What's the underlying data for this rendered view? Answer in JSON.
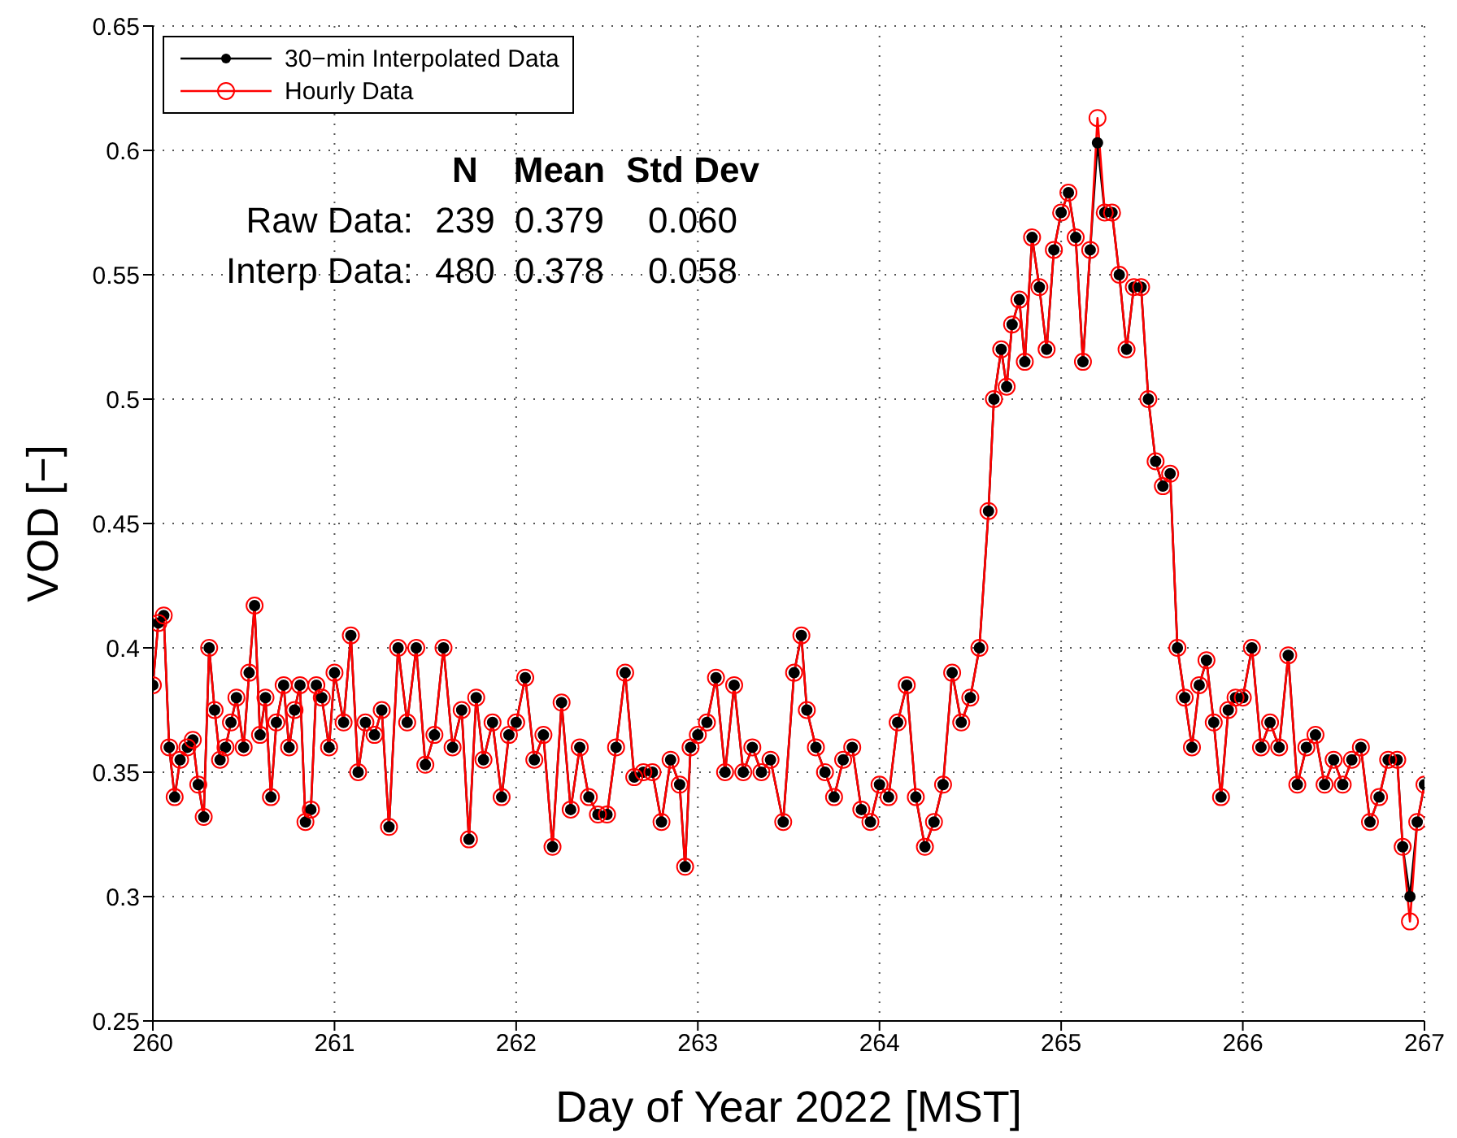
{
  "chart_data": {
    "type": "line",
    "xlabel": "Day of Year 2022 [MST]",
    "ylabel": "VOD [−]",
    "xlim": [
      260,
      267
    ],
    "xticks": [
      260,
      261,
      262,
      263,
      264,
      265,
      266,
      267
    ],
    "ylim": [
      0.25,
      0.65
    ],
    "yticks": [
      0.25,
      0.3,
      0.35,
      0.4,
      0.45,
      0.5,
      0.55,
      0.6,
      0.65
    ],
    "grid": true,
    "legend": "top left",
    "marker": "circle",
    "line_style": "solid",
    "annotations": [
      "N",
      "Mean",
      "Std Dev",
      "Raw Data:",
      "239",
      "0.379",
      "0.060",
      "Interp Data:",
      "480",
      "0.378",
      "0.058"
    ],
    "x": [
      260.0,
      260.03,
      260.06,
      260.09,
      260.12,
      260.15,
      260.19,
      260.22,
      260.25,
      260.28,
      260.31,
      260.34,
      260.37,
      260.4,
      260.43,
      260.46,
      260.5,
      260.53,
      260.56,
      260.59,
      260.62,
      260.65,
      260.68,
      260.72,
      260.75,
      260.78,
      260.81,
      260.84,
      260.87,
      260.9,
      260.93,
      260.97,
      261.0,
      261.05,
      261.09,
      261.13,
      261.17,
      261.22,
      261.26,
      261.3,
      261.35,
      261.4,
      261.45,
      261.5,
      261.55,
      261.6,
      261.65,
      261.7,
      261.74,
      261.78,
      261.82,
      261.87,
      261.92,
      261.96,
      262.0,
      262.05,
      262.1,
      262.15,
      262.2,
      262.25,
      262.3,
      262.35,
      262.4,
      262.45,
      262.5,
      262.55,
      262.6,
      262.65,
      262.7,
      262.75,
      262.8,
      262.85,
      262.9,
      262.93,
      262.96,
      263.0,
      263.05,
      263.1,
      263.15,
      263.2,
      263.25,
      263.3,
      263.35,
      263.4,
      263.47,
      263.53,
      263.57,
      263.6,
      263.65,
      263.7,
      263.75,
      263.8,
      263.85,
      263.9,
      263.95,
      264.0,
      264.05,
      264.1,
      264.15,
      264.2,
      264.25,
      264.3,
      264.35,
      264.4,
      264.45,
      264.5,
      264.55,
      264.6,
      264.63,
      264.67,
      264.7,
      264.73,
      264.77,
      264.8,
      264.84,
      264.88,
      264.92,
      264.96,
      265.0,
      265.04,
      265.08,
      265.12,
      265.16,
      265.2,
      265.24,
      265.28,
      265.32,
      265.36,
      265.4,
      265.44,
      265.48,
      265.52,
      265.56,
      265.6,
      265.64,
      265.68,
      265.72,
      265.76,
      265.8,
      265.84,
      265.88,
      265.92,
      265.96,
      266.0,
      266.05,
      266.1,
      266.15,
      266.2,
      266.25,
      266.3,
      266.35,
      266.4,
      266.45,
      266.5,
      266.55,
      266.6,
      266.65,
      266.7,
      266.75,
      266.8,
      266.85,
      266.88,
      266.92,
      266.96,
      267.0
    ],
    "series": [
      {
        "name": "30−min Interpolated Data",
        "color": "#000000",
        "values": [
          0.385,
          0.41,
          0.413,
          0.36,
          0.34,
          0.355,
          0.36,
          0.363,
          0.345,
          0.332,
          0.4,
          0.375,
          0.355,
          0.36,
          0.37,
          0.38,
          0.36,
          0.39,
          0.417,
          0.365,
          0.38,
          0.34,
          0.37,
          0.385,
          0.36,
          0.375,
          0.385,
          0.33,
          0.335,
          0.385,
          0.38,
          0.36,
          0.39,
          0.37,
          0.405,
          0.35,
          0.37,
          0.365,
          0.375,
          0.328,
          0.4,
          0.37,
          0.4,
          0.353,
          0.365,
          0.4,
          0.36,
          0.375,
          0.323,
          0.38,
          0.355,
          0.37,
          0.34,
          0.365,
          0.37,
          0.388,
          0.355,
          0.365,
          0.32,
          0.378,
          0.335,
          0.36,
          0.34,
          0.333,
          0.333,
          0.36,
          0.39,
          0.348,
          0.35,
          0.35,
          0.33,
          0.355,
          0.345,
          0.312,
          0.36,
          0.365,
          0.37,
          0.388,
          0.35,
          0.385,
          0.35,
          0.36,
          0.35,
          0.355,
          0.33,
          0.39,
          0.405,
          0.375,
          0.36,
          0.35,
          0.34,
          0.355,
          0.36,
          0.335,
          0.33,
          0.345,
          0.34,
          0.37,
          0.385,
          0.34,
          0.32,
          0.33,
          0.345,
          0.39,
          0.37,
          0.38,
          0.4,
          0.455,
          0.5,
          0.52,
          0.505,
          0.53,
          0.54,
          0.515,
          0.565,
          0.545,
          0.52,
          0.56,
          0.575,
          0.583,
          0.565,
          0.515,
          0.56,
          0.603,
          0.575,
          0.575,
          0.55,
          0.52,
          0.545,
          0.545,
          0.5,
          0.475,
          0.465,
          0.47,
          0.4,
          0.38,
          0.36,
          0.385,
          0.395,
          0.37,
          0.34,
          0.375,
          0.38,
          0.38,
          0.4,
          0.36,
          0.37,
          0.36,
          0.397,
          0.345,
          0.36,
          0.365,
          0.345,
          0.355,
          0.345,
          0.355,
          0.36,
          0.33,
          0.34,
          0.355,
          0.355,
          0.32,
          0.3,
          0.33,
          0.345
        ]
      },
      {
        "name": "Hourly Data",
        "color": "#ff0000",
        "values": [
          0.385,
          0.41,
          0.413,
          0.36,
          0.34,
          0.355,
          0.36,
          0.363,
          0.345,
          0.332,
          0.4,
          0.375,
          0.355,
          0.36,
          0.37,
          0.38,
          0.36,
          0.39,
          0.417,
          0.365,
          0.38,
          0.34,
          0.37,
          0.385,
          0.36,
          0.375,
          0.385,
          0.33,
          0.335,
          0.385,
          0.38,
          0.36,
          0.39,
          0.37,
          0.405,
          0.35,
          0.37,
          0.365,
          0.375,
          0.328,
          0.4,
          0.37,
          0.4,
          0.353,
          0.365,
          0.4,
          0.36,
          0.375,
          0.323,
          0.38,
          0.355,
          0.37,
          0.34,
          0.365,
          0.37,
          0.388,
          0.355,
          0.365,
          0.32,
          0.378,
          0.335,
          0.36,
          0.34,
          0.333,
          0.333,
          0.36,
          0.39,
          0.348,
          0.35,
          0.35,
          0.33,
          0.355,
          0.345,
          0.312,
          0.36,
          0.365,
          0.37,
          0.388,
          0.35,
          0.385,
          0.35,
          0.36,
          0.35,
          0.355,
          0.33,
          0.39,
          0.405,
          0.375,
          0.36,
          0.35,
          0.34,
          0.355,
          0.36,
          0.335,
          0.33,
          0.345,
          0.34,
          0.37,
          0.385,
          0.34,
          0.32,
          0.33,
          0.345,
          0.39,
          0.37,
          0.38,
          0.4,
          0.455,
          0.5,
          0.52,
          0.505,
          0.53,
          0.54,
          0.515,
          0.565,
          0.545,
          0.52,
          0.56,
          0.575,
          0.583,
          0.565,
          0.515,
          0.56,
          0.613,
          0.575,
          0.575,
          0.55,
          0.52,
          0.545,
          0.545,
          0.5,
          0.475,
          0.465,
          0.47,
          0.4,
          0.38,
          0.36,
          0.385,
          0.395,
          0.37,
          0.34,
          0.375,
          0.38,
          0.38,
          0.4,
          0.36,
          0.37,
          0.36,
          0.397,
          0.345,
          0.36,
          0.365,
          0.345,
          0.355,
          0.345,
          0.355,
          0.36,
          0.33,
          0.34,
          0.355,
          0.355,
          0.32,
          0.29,
          0.33,
          0.345
        ]
      }
    ]
  }
}
